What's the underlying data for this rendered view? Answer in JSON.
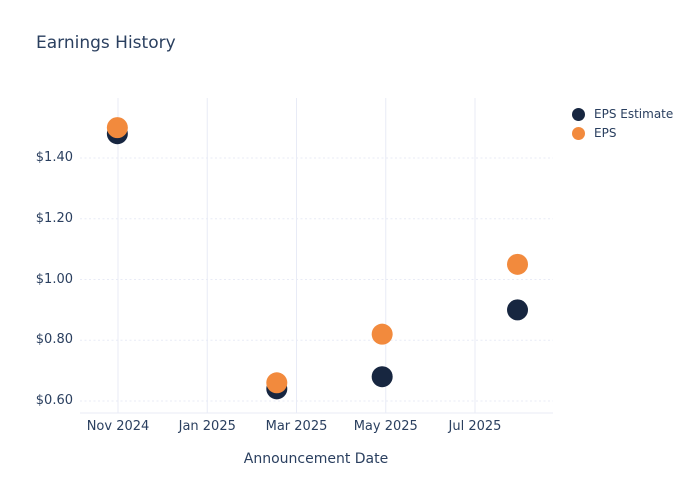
{
  "title": "Earnings History",
  "colors": {
    "background": "#ffffff",
    "grid": "#e8ebf6",
    "text": "#2a3f5f",
    "estimate_marker": "#172640",
    "eps_marker": "#f28a3d"
  },
  "legend": {
    "items": [
      {
        "label": "EPS Estimate"
      },
      {
        "label": "EPS"
      }
    ]
  },
  "x_axis": {
    "title": "Announcement Date",
    "tick_labels": [
      "Nov 2024",
      "Jan 2025",
      "Mar 2025",
      "May 2025",
      "Jul 2025"
    ]
  },
  "y_axis": {
    "tick_labels": [
      "$1.40",
      "$1.20",
      "$1.00",
      "$0.80",
      "$0.60"
    ],
    "tick_values": [
      1.4,
      1.2,
      1.0,
      0.8,
      0.6
    ]
  },
  "chart_data": {
    "type": "scatter",
    "title": "Earnings History",
    "xlabel": "Announcement Date",
    "ylabel": "",
    "x_dates": [
      "2024-10-31",
      "2025-02-18",
      "2025-04-29",
      "2025-07-30"
    ],
    "x_tick_labels": [
      "Nov 2024",
      "Jan 2025",
      "Mar 2025",
      "May 2025",
      "Jul 2025"
    ],
    "x_tick_months_from_nov_2024": [
      0,
      2,
      4,
      6,
      8
    ],
    "series": [
      {
        "name": "EPS Estimate",
        "values": [
          1.48,
          0.64,
          0.68,
          0.9
        ],
        "color": "#172640"
      },
      {
        "name": "EPS",
        "values": [
          1.5,
          0.66,
          0.82,
          1.05
        ],
        "color": "#f28a3d"
      }
    ],
    "y_ticks": [
      0.6,
      0.8,
      1.0,
      1.2,
      1.4
    ],
    "y_tick_format": "$0.00",
    "ylim": [
      0.56,
      1.6
    ],
    "grid": {
      "horizontal": "dotted",
      "vertical": "solid"
    },
    "legend_position": "outside-top-right",
    "marker_size_px": 21
  }
}
